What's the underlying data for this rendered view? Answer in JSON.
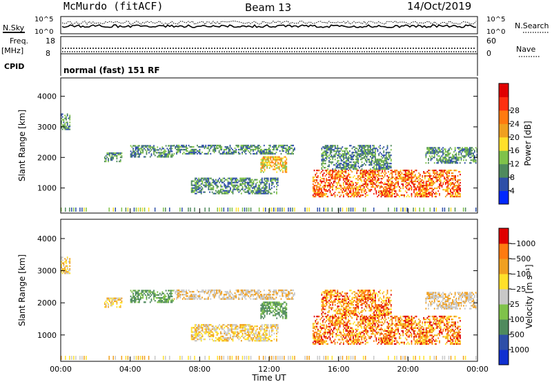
{
  "header": {
    "station": "McMurdo (fitACF)",
    "beam": "Beam 13",
    "date": "14/Oct/2019"
  },
  "top_panels": {
    "nsky_label": "N.Sky",
    "nsearch_label": "N.Search",
    "nsky_ticks": [
      "10^5",
      "10^0"
    ],
    "nsearch_ticks": [
      "10^5",
      "10^0"
    ],
    "freq_label": "Freq.",
    "freq_unit": "[MHz]",
    "freq_ticks": [
      "18",
      "8"
    ],
    "nave_label": "Nave",
    "nave_ticks": [
      "60",
      "0"
    ],
    "cpid_label": "CPID",
    "cpid_value": "normal (fast) 151 RF"
  },
  "chart_data": [
    {
      "type": "heatmap",
      "parameter": "power",
      "ylabel": "Slant Range [km]",
      "ylim": [
        180,
        4600
      ],
      "yticks": [
        1000,
        2000,
        3000,
        4000
      ],
      "xlim": [
        0,
        24
      ],
      "colorbar_label": "Power [dB]",
      "colorbar_ticks": [
        "4",
        "8",
        "12",
        "16",
        "20",
        "24",
        "28"
      ],
      "colorbar_colors": [
        "#0028ff",
        "#2e4fa8",
        "#4f8a5d",
        "#7fc24a",
        "#ffe02a",
        "#f0a020",
        "#ff7a10",
        "#ff3010",
        "#e00000"
      ],
      "echo_bands": [
        {
          "t0": 0.0,
          "t1": 0.5,
          "r0": 2900,
          "r1": 3400
        },
        {
          "t0": 2.5,
          "t1": 3.5,
          "r0": 1850,
          "r1": 2150
        },
        {
          "t0": 4.0,
          "t1": 6.5,
          "r0": 2000,
          "r1": 2400
        },
        {
          "t0": 6.5,
          "t1": 13.5,
          "r0": 2100,
          "r1": 2400
        },
        {
          "t0": 7.5,
          "t1": 12.5,
          "r0": 800,
          "r1": 1300
        },
        {
          "t0": 11.5,
          "t1": 13.0,
          "r0": 1500,
          "r1": 2000
        },
        {
          "t0": 14.5,
          "t1": 23.0,
          "r0": 700,
          "r1": 1600
        },
        {
          "t0": 15.0,
          "t1": 19.0,
          "r0": 1600,
          "r1": 2400
        },
        {
          "t0": 21.0,
          "t1": 24.0,
          "r0": 1800,
          "r1": 2300
        }
      ]
    },
    {
      "type": "heatmap",
      "parameter": "velocity",
      "ylabel": "Slant Range [km]",
      "ylim": [
        180,
        4600
      ],
      "yticks": [
        1000,
        2000,
        3000,
        4000
      ],
      "xlim": [
        0,
        24
      ],
      "xticks": [
        "00:00",
        "04:00",
        "08:00",
        "12:00",
        "16:00",
        "20:00",
        "00:00"
      ],
      "xlabel": "Time UT",
      "colorbar_label": "Velocity [m s⁻¹]",
      "colorbar_ticks": [
        "1000",
        "500",
        "100",
        "25",
        "−25",
        "−100",
        "−500",
        "−1000"
      ],
      "colorbar_colors": [
        "#1030d0",
        "#2e4fa8",
        "#4f8a5d",
        "#7fc24a",
        "#c8c8c8",
        "#ffe02a",
        "#f0a020",
        "#ff7a10",
        "#e00000"
      ]
    }
  ]
}
